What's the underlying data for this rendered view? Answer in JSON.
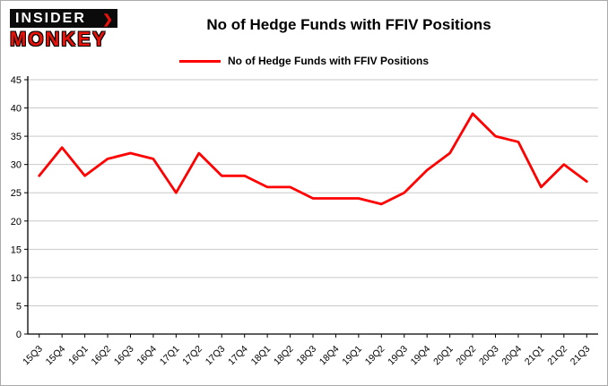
{
  "header": {
    "logo": {
      "line1": "INSIDER",
      "line2": "MONKEY",
      "chevron": "❯"
    },
    "title": "No of Hedge Funds with FFIV Positions"
  },
  "legend": {
    "label": "No of Hedge Funds with FFIV Positions",
    "color": "#fe0000"
  },
  "chart_data": {
    "type": "line",
    "title": "No of Hedge Funds with FFIV Positions",
    "categories": [
      "15Q3",
      "15Q4",
      "16Q1",
      "16Q2",
      "16Q3",
      "16Q4",
      "17Q1",
      "17Q2",
      "17Q3",
      "17Q4",
      "18Q1",
      "18Q2",
      "18Q3",
      "18Q4",
      "19Q1",
      "19Q2",
      "19Q3",
      "19Q4",
      "20Q1",
      "20Q2",
      "20Q3",
      "20Q4",
      "21Q1",
      "21Q2",
      "21Q3"
    ],
    "values": [
      28,
      33,
      28,
      31,
      32,
      31,
      25,
      32,
      28,
      28,
      26,
      26,
      24,
      24,
      24,
      23,
      25,
      29,
      32,
      39,
      35,
      34,
      26,
      30,
      27
    ],
    "xlabel": "",
    "ylabel": "",
    "ylim": [
      0,
      45
    ],
    "ytick_step": 5,
    "grid": true,
    "grid_color": "#c9c9c9",
    "line_color": "#fe0000",
    "legend_position": "top"
  }
}
